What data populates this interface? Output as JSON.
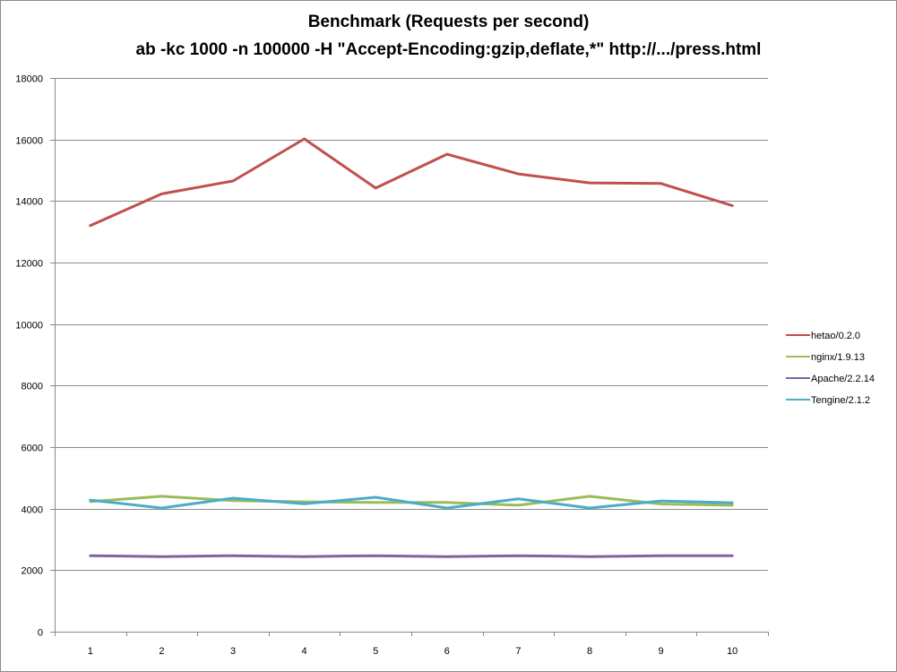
{
  "chart_data": {
    "type": "line",
    "title": "Benchmark (Requests per second)",
    "subtitle": "ab -kc 1000 -n 100000 -H \"Accept-Encoding:gzip,deflate,*\" http://.../press.html",
    "xlabel": "",
    "ylabel": "",
    "categories": [
      "1",
      "2",
      "3",
      "4",
      "5",
      "6",
      "7",
      "8",
      "9",
      "10"
    ],
    "ylim": [
      0,
      18000
    ],
    "yticks": [
      "0",
      "2000",
      "4000",
      "6000",
      "8000",
      "10000",
      "12000",
      "14000",
      "16000",
      "18000"
    ],
    "grid": "horizontal",
    "legend_position": "right",
    "series": [
      {
        "name": "hetao/0.2.0",
        "color": "#c0504d",
        "values": [
          13200,
          14230,
          14650,
          16020,
          14420,
          15520,
          14880,
          14590,
          14570,
          13850
        ]
      },
      {
        "name": "nginx/1.9.13",
        "color": "#9bbb59",
        "values": [
          4230,
          4400,
          4260,
          4220,
          4200,
          4200,
          4110,
          4400,
          4150,
          4110
        ]
      },
      {
        "name": "Apache/2.2.14",
        "color": "#8064a2",
        "values": [
          2470,
          2440,
          2470,
          2440,
          2470,
          2440,
          2470,
          2440,
          2470,
          2470
        ]
      },
      {
        "name": "Tengine/2.1.2",
        "color": "#4bacc6",
        "values": [
          4280,
          4020,
          4340,
          4160,
          4370,
          4020,
          4320,
          4020,
          4250,
          4190
        ]
      }
    ]
  }
}
